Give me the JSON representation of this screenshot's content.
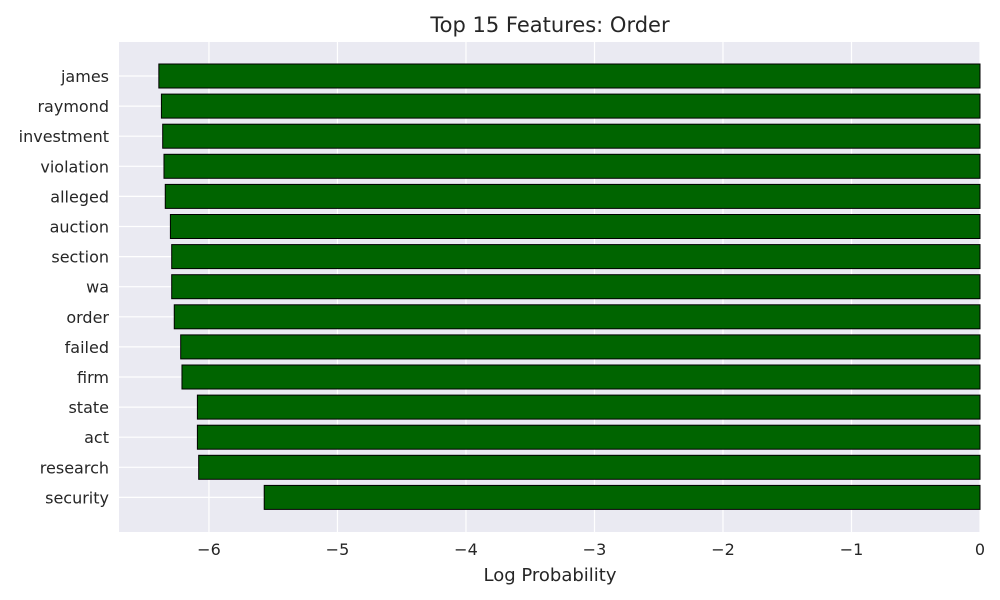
{
  "chart_data": {
    "type": "bar",
    "orientation": "horizontal",
    "title": "Top 15 Features: Order",
    "xlabel": "Log Probability",
    "ylabel": "",
    "xlim": [
      -6.7,
      0
    ],
    "xticks": [
      -6,
      -5,
      -4,
      -3,
      -2,
      -1,
      0
    ],
    "xtick_labels": [
      "−6",
      "−5",
      "−4",
      "−3",
      "−2",
      "−1",
      "0"
    ],
    "grid": true,
    "categories": [
      "james",
      "raymond",
      "investment",
      "violation",
      "alleged",
      "auction",
      "section",
      "wa",
      "order",
      "failed",
      "firm",
      "state",
      "act",
      "research",
      "security"
    ],
    "values": [
      -6.39,
      -6.37,
      -6.36,
      -6.35,
      -6.34,
      -6.3,
      -6.29,
      -6.29,
      -6.27,
      -6.22,
      -6.21,
      -6.09,
      -6.09,
      -6.08,
      -5.57
    ],
    "colors": {
      "bar": "#006400",
      "bar_edge": "#000000",
      "plot_bg": "#EAEAF2",
      "grid": "#FFFFFF",
      "text": "#262626"
    }
  }
}
